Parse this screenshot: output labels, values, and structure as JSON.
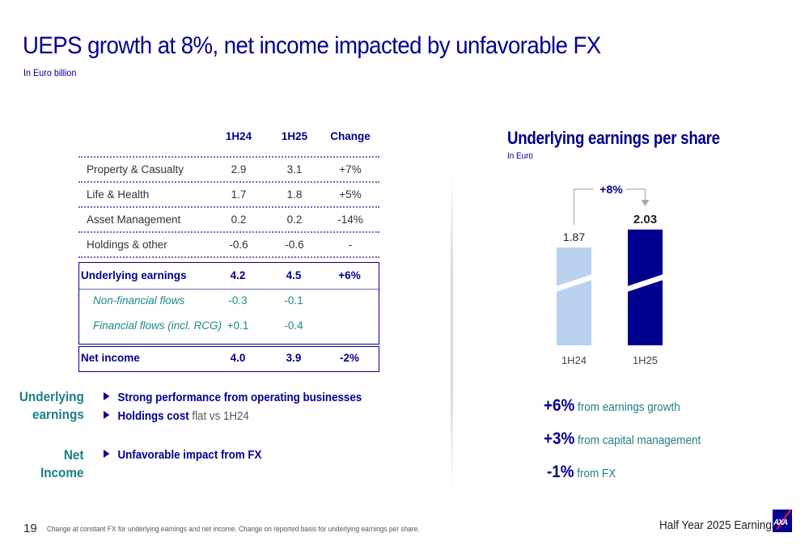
{
  "header": {
    "title": "UEPS growth at 8%, net income impacted by unfavorable FX",
    "subtitle": "In Euro billion"
  },
  "table": {
    "columns": [
      "1H24",
      "1H25",
      "Change"
    ],
    "rows": [
      {
        "label": "Property & Casualty",
        "h24": "2.9",
        "h25": "3.1",
        "change": "+7%"
      },
      {
        "label": "Life & Health",
        "h24": "1.7",
        "h25": "1.8",
        "change": "+5%"
      },
      {
        "label": "Asset Management",
        "h24": "0.2",
        "h25": "0.2",
        "change": "-14%"
      },
      {
        "label": "Holdings & other",
        "h24": "-0.6",
        "h25": "-0.6",
        "change": "-"
      }
    ],
    "underlying": {
      "label": "Underlying earnings",
      "h24": "4.2",
      "h25": "4.5",
      "change": "+6%"
    },
    "sub_rows": [
      {
        "label": "Non-financial flows",
        "h24": "-0.3",
        "h25": "-0.1"
      },
      {
        "label": "Financial flows (incl. RCG)",
        "h24": "+0.1",
        "h25": "-0.4"
      }
    ],
    "net_income": {
      "label": "Net income",
      "h24": "4.0",
      "h25": "3.9",
      "change": "-2%"
    }
  },
  "commentary": {
    "underlying_label_1": "Underlying",
    "underlying_label_2": "earnings",
    "bullet1": "Strong performance from operating businesses",
    "bullet2_bold": "Holdings cost",
    "bullet2_plain": " flat vs 1H24",
    "net_label_1": "Net",
    "net_label_2": "Income",
    "bullet3": "Unfavorable impact from FX"
  },
  "chart_data": {
    "type": "bar",
    "title": "Underlying earnings per share",
    "subtitle": "In Euro",
    "categories": [
      "1H24",
      "1H25"
    ],
    "values": [
      1.87,
      2.03
    ],
    "value_labels": [
      "1.87",
      "2.03"
    ],
    "growth_annotation": "+8%",
    "axis_break": true,
    "colors": [
      "#b8d1ee",
      "#00008f"
    ],
    "xlabel": "",
    "ylabel": ""
  },
  "contributions": [
    {
      "value": "+6%",
      "text": "from earnings growth"
    },
    {
      "value": "+3%",
      "text": "from capital management"
    },
    {
      "value": "-1%",
      "text": "from FX"
    }
  ],
  "footer": {
    "page_number": "19",
    "note": "Change at constant FX for underlying earnings and net income. Change on reported basis for underlying earnings per share.",
    "brand": "Half Year 2025 Earnings",
    "logo_text": "AXA"
  }
}
